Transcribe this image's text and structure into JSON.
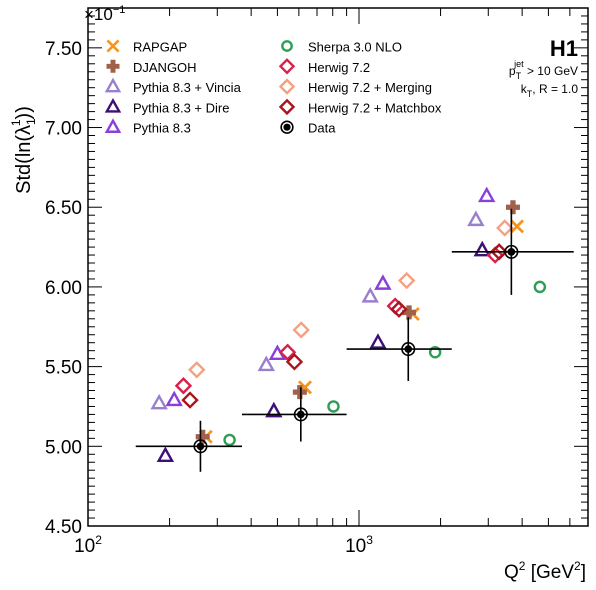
{
  "chart_data": {
    "type": "scatter",
    "title": "",
    "ylabel": "Std(ln(λ₁¹))",
    "ylabel_parts": [
      "Std(ln(λ",
      "1",
      "1",
      "))"
    ],
    "xlabel": "Q² [GeV²]",
    "xlabel_parts": [
      "Q",
      "2",
      " [GeV",
      "2",
      "]"
    ],
    "y_multiplier": "×10⁻¹",
    "y_multiplier_parts": [
      "×10",
      "−1"
    ],
    "x_scale": "log",
    "xlim": [
      100,
      7000
    ],
    "ylim": [
      4.5,
      7.75
    ],
    "y_ticks": [
      4.5,
      5.0,
      5.5,
      6.0,
      6.5,
      7.0,
      7.5
    ],
    "y_tick_labels": [
      "4.50",
      "5.00",
      "5.50",
      "6.00",
      "6.50",
      "7.00",
      "7.50"
    ],
    "x_tick_labels": [
      {
        "value": 100,
        "base": "10",
        "exp": "2"
      },
      {
        "value": 1000,
        "base": "10",
        "exp": "3"
      }
    ],
    "grid": false,
    "legend_position": "top-left",
    "experiment_label": "H1",
    "annotations": [
      {
        "parts": [
          "p",
          "T",
          "jet",
          " > 10 GeV"
        ]
      },
      {
        "parts": [
          "k",
          "T",
          ", R = 1.0"
        ]
      }
    ],
    "series": [
      {
        "name": "RAPGAP",
        "color": "#f7941d",
        "marker": "cross-filled",
        "x": [
          272,
          632,
          1580,
          3830
        ],
        "y": [
          5.06,
          5.37,
          5.83,
          6.38
        ]
      },
      {
        "name": "DJANGOH",
        "color": "#a0604a",
        "marker": "plus-filled",
        "x": [
          265,
          605,
          1530,
          3700
        ],
        "y": [
          5.06,
          5.34,
          5.84,
          6.5
        ]
      },
      {
        "name": "Pythia 8.3 + Vincia",
        "color": "#9b7fcf",
        "marker": "triangle-open",
        "x": [
          183,
          455,
          1100,
          2700
        ],
        "y": [
          5.27,
          5.51,
          5.94,
          6.42
        ]
      },
      {
        "name": "Pythia 8.3 + Dire",
        "color": "#3d0f77",
        "marker": "triangle-open",
        "x": [
          193,
          485,
          1175,
          2850
        ],
        "y": [
          4.94,
          5.22,
          5.65,
          6.23
        ]
      },
      {
        "name": "Pythia 8.3",
        "color": "#8b3fd9",
        "marker": "triangle-open",
        "x": [
          208,
          500,
          1225,
          2960
        ],
        "y": [
          5.29,
          5.58,
          6.02,
          6.57
        ]
      },
      {
        "name": "Sherpa 3.0 NLO",
        "color": "#2e9e57",
        "marker": "circle-open",
        "x": [
          333,
          805,
          1910,
          4650
        ],
        "y": [
          5.04,
          5.25,
          5.59,
          6.0
        ]
      },
      {
        "name": "Herwig 7.2",
        "color": "#d9204a",
        "marker": "diamond-open",
        "x": [
          225,
          545,
          1360,
          3180
        ],
        "y": [
          5.38,
          5.59,
          5.88,
          6.2
        ]
      },
      {
        "name": "Herwig 7.2 + Merging",
        "color": "#f5a081",
        "marker": "diamond-open",
        "x": [
          252,
          612,
          1500,
          3450
        ],
        "y": [
          5.48,
          5.73,
          6.04,
          6.37
        ]
      },
      {
        "name": "Herwig 7.2 + Matchbox",
        "color": "#a8151e",
        "marker": "diamond-open",
        "x": [
          238,
          578,
          1405,
          3290
        ],
        "y": [
          5.29,
          5.53,
          5.86,
          6.22
        ]
      },
      {
        "name": "Data",
        "color": "#000000",
        "marker": "data",
        "x": [
          260,
          610,
          1520,
          3650
        ],
        "y": [
          5.0,
          5.2,
          5.61,
          6.22
        ],
        "x_low": [
          150,
          370,
          900,
          2200
        ],
        "x_high": [
          370,
          900,
          2200,
          6200
        ],
        "y_err": [
          0.16,
          0.17,
          0.2,
          0.27
        ]
      }
    ]
  }
}
